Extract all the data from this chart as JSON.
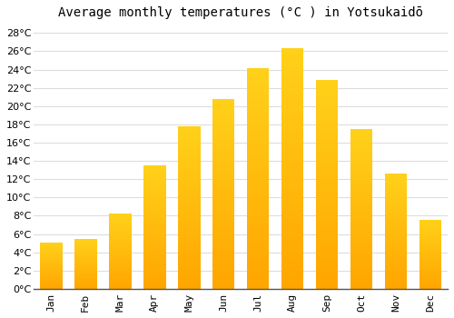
{
  "title": "Average monthly temperatures (°C ) in Yotsukaidō",
  "months": [
    "Jan",
    "Feb",
    "Mar",
    "Apr",
    "May",
    "Jun",
    "Jul",
    "Aug",
    "Sep",
    "Oct",
    "Nov",
    "Dec"
  ],
  "values": [
    5.1,
    5.5,
    8.2,
    13.5,
    17.8,
    20.8,
    24.2,
    26.3,
    22.9,
    17.5,
    12.6,
    7.6
  ],
  "bar_color_top": "#FFD966",
  "bar_color_bottom": "#FFA500",
  "background_color": "#FFFFFF",
  "grid_color": "#DDDDDD",
  "ylim": [
    0,
    29
  ],
  "yticks": [
    0,
    2,
    4,
    6,
    8,
    10,
    12,
    14,
    16,
    18,
    20,
    22,
    24,
    26,
    28
  ],
  "title_fontsize": 10,
  "tick_fontsize": 8,
  "figsize": [
    5.0,
    3.5
  ],
  "dpi": 100
}
